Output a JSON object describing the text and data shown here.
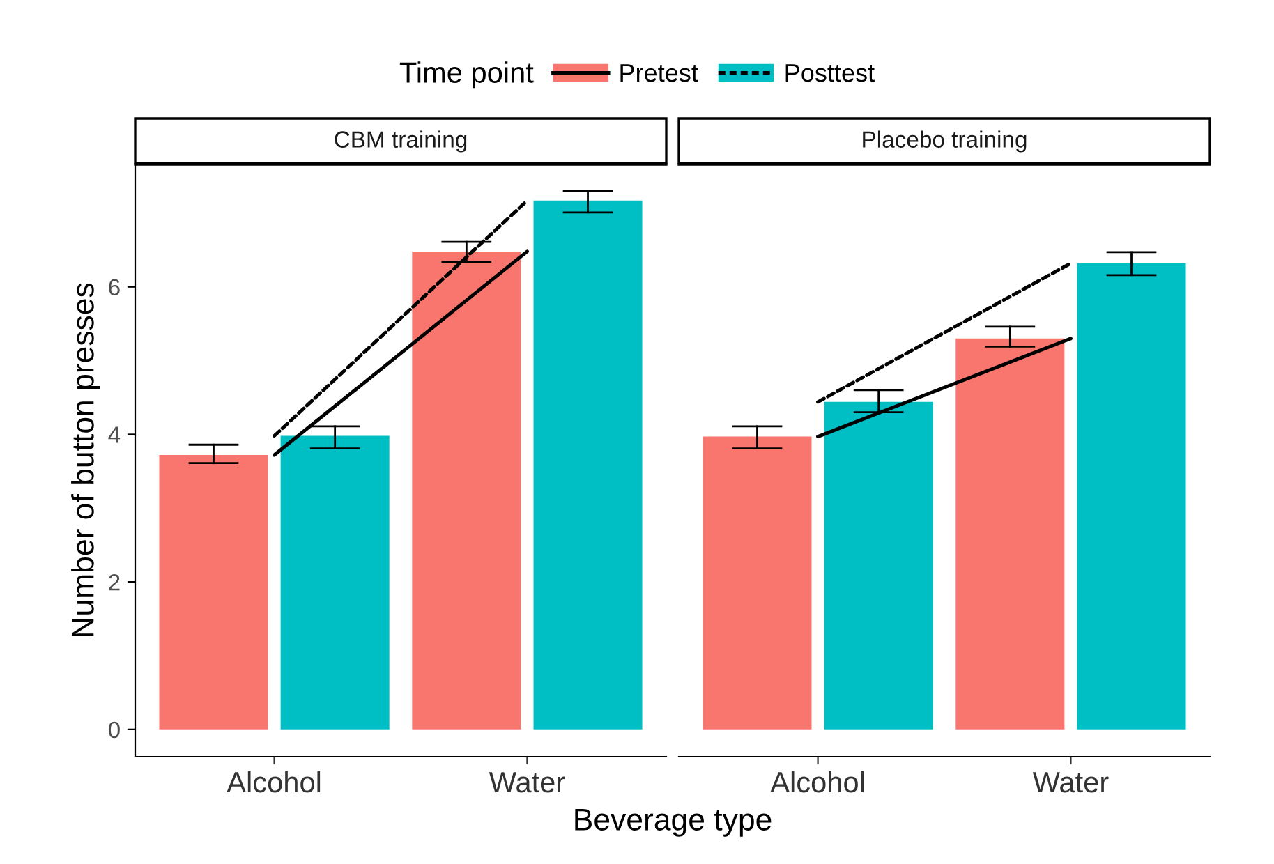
{
  "chart_data": [
    {
      "type": "bar",
      "title": "CBM training",
      "xlabel": "Beverage type",
      "ylabel": "Number of button presses",
      "legend_title": "Time point",
      "legend": "top",
      "grid": false,
      "categories": [
        "Alcohol",
        "Water"
      ],
      "ylim": [
        -0.37,
        7.66
      ],
      "yticks": [
        0,
        2,
        4,
        6
      ],
      "series": [
        {
          "name": "Pretest",
          "color": "#f8766d",
          "values": [
            3.72,
            6.48
          ],
          "errors": [
            [
              3.61,
              3.86
            ],
            [
              6.34,
              6.61
            ]
          ]
        },
        {
          "name": "Posttest",
          "color": "#00bfc4",
          "values": [
            3.98,
            7.17
          ],
          "errors": [
            [
              3.81,
              4.11
            ],
            [
              7.01,
              7.3
            ]
          ]
        },
        {
          "type": "line",
          "color": "#000000",
          "line_style": "solid",
          "values": [
            3.72,
            6.48
          ]
        },
        {
          "type": "line",
          "color": "#000000",
          "line_style": "dashed",
          "values": [
            3.98,
            7.17
          ]
        }
      ]
    },
    {
      "type": "bar",
      "title": "Placebo training",
      "grid": false,
      "tick_labels": "x",
      "categories": [
        "Alcohol",
        "Water"
      ],
      "ylim": [
        -0.37,
        7.66
      ],
      "yticks": [
        0,
        2,
        4,
        6
      ],
      "series": [
        {
          "color": "#f8766d",
          "values": [
            3.97,
            5.3
          ],
          "errors": [
            [
              3.81,
              4.11
            ],
            [
              5.19,
              5.46
            ]
          ]
        },
        {
          "color": "#00bfc4",
          "values": [
            4.44,
            6.32
          ],
          "errors": [
            [
              4.3,
              4.6
            ],
            [
              6.16,
              6.47
            ]
          ]
        },
        {
          "type": "line",
          "color": "#000000",
          "line_style": "solid",
          "values": [
            3.97,
            5.3
          ]
        },
        {
          "type": "line",
          "color": "#000000",
          "line_style": "dashed",
          "values": [
            4.44,
            6.32
          ]
        }
      ]
    }
  ]
}
